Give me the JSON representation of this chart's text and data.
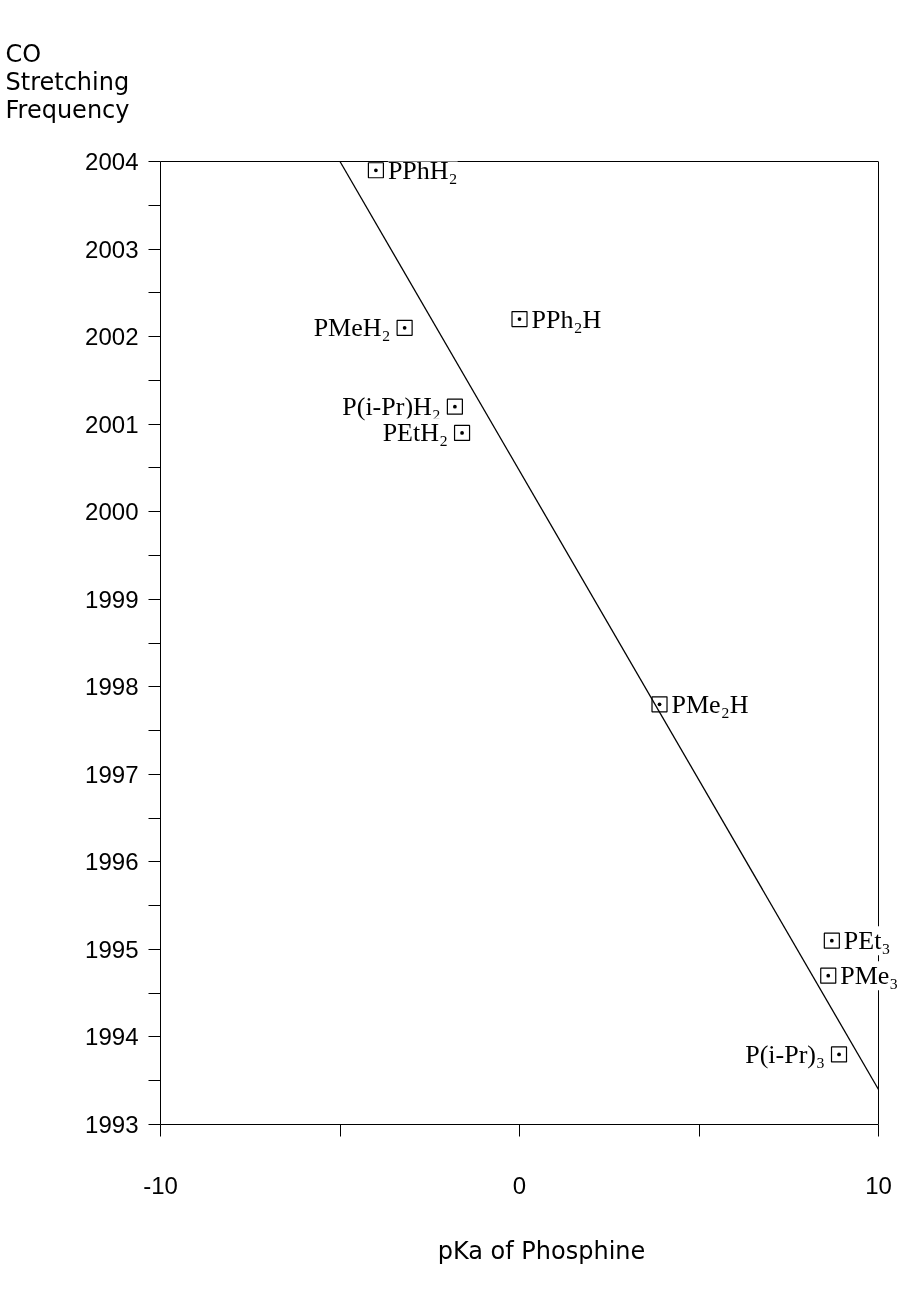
{
  "chart_data": {
    "type": "scatter",
    "xlabel": "pKa of Phosphine",
    "annotations": [
      "CO Stretching Frequency"
    ],
    "xlim": [
      -10,
      10
    ],
    "xticks": [
      -10,
      {
        "value": -5,
        "label": null
      },
      0,
      {
        "value": 5,
        "label": null
      },
      10
    ],
    "ylim": [
      1993,
      2004
    ],
    "yticks": [
      1993,
      {
        "value": 1993.5,
        "label": null
      },
      1994,
      {
        "value": 1994.5,
        "label": null
      },
      1995,
      {
        "value": 1995.5,
        "label": null
      },
      1996,
      {
        "value": 1996.5,
        "label": null
      },
      1997,
      {
        "value": 1997.5,
        "label": null
      },
      1998,
      {
        "value": 1998.5,
        "label": null
      },
      1999,
      {
        "value": 1999.5,
        "label": null
      },
      2000,
      {
        "value": 2000.5,
        "label": null
      },
      2001,
      {
        "value": 2001.5,
        "label": null
      },
      2002,
      {
        "value": 2002.5,
        "label": null
      },
      2003,
      {
        "value": 2003.5,
        "label": null
      },
      2004
    ],
    "grid": false,
    "series": [
      {
        "marker": "square",
        "color": "#000000",
        "x": [
          -4.0,
          -3.2,
          0.0,
          -1.8,
          -1.6,
          3.9,
          8.7,
          8.6,
          8.9
        ],
        "values": [
          2003.9,
          2002.1,
          2002.2,
          2001.2,
          2000.9,
          1997.8,
          1995.1,
          1994.7,
          1993.8
        ],
        "value_labels": [
          "PPhH₂",
          "PMeH₂",
          "PPh₂H",
          "P(i-Pr)H₂",
          "PEtH₂",
          "PMe₂H",
          "PEt₃",
          "PMe₃",
          "P(i-Pr)₃"
        ]
      },
      {
        "type": "line",
        "color": "#000000",
        "x": [
          -5.0,
          10.0
        ],
        "values": [
          2004.0,
          1993.4
        ]
      }
    ]
  }
}
